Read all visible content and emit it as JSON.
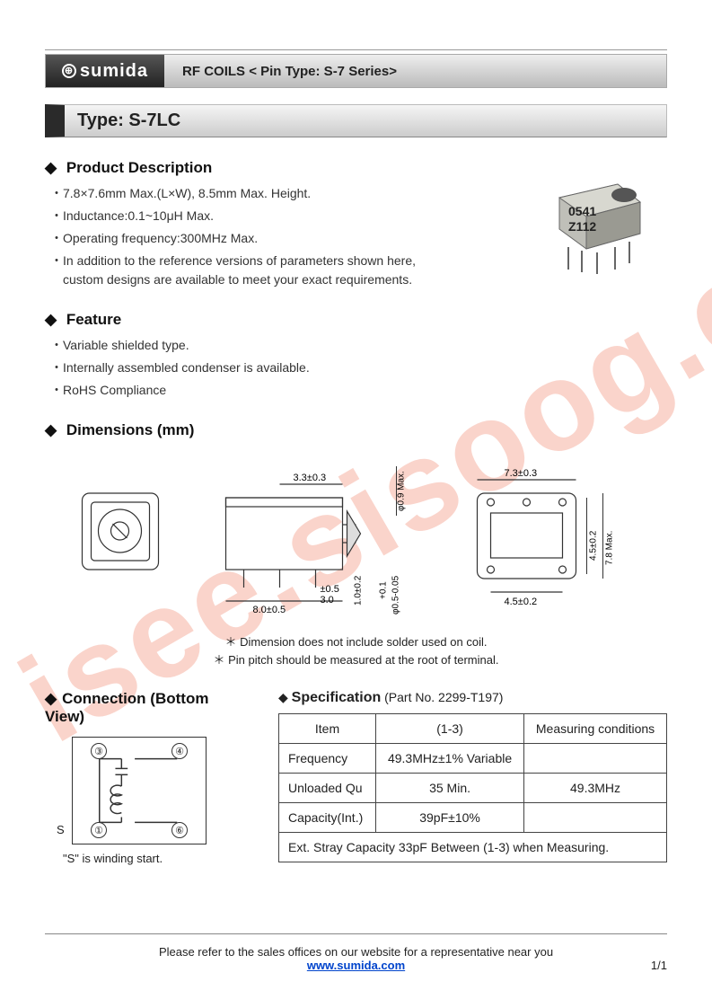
{
  "header": {
    "brand": "sumida",
    "title": "RF COILS < Pin Type: S-7 Series>"
  },
  "type_bar": "Type: S-7LC",
  "product_description": {
    "title": "Product Description",
    "items": [
      "7.8×7.6mm Max.(L×W), 8.5mm Max. Height.",
      "Inductance:0.1~10μH Max.",
      "Operating frequency:300MHz Max.",
      "In addition to the reference versions of parameters shown here, custom designs are available to meet your exact requirements."
    ]
  },
  "product_image": {
    "marking1": "0541",
    "marking2": "Z112"
  },
  "feature": {
    "title": "Feature",
    "items": [
      "Variable shielded type.",
      "Internally assembled condenser is available.",
      "RoHS Compliance"
    ]
  },
  "dimensions": {
    "title": "Dimensions (mm)",
    "labels": {
      "l1": "3.3±0.3",
      "l2": "8.0±0.5",
      "l3": "±0.5",
      "l4": "3.0",
      "l5": "1.0±0.2",
      "l6": "+0.1",
      "l7": "φ0.5-0.05",
      "l8": "φ0.9 Max.",
      "l9": "7.3±0.3",
      "l10": "4.5±0.2",
      "l11": "7.8 Max.",
      "l12": "4.5±0.2"
    },
    "notes": [
      "＊  Dimension does not include solder used on coil.",
      "＊  Pin pitch should be measured at the root of terminal."
    ]
  },
  "connection": {
    "title": "Connection (Bottom View)",
    "pins": {
      "p1": "①",
      "p3": "③",
      "p4": "④",
      "p6": "⑥"
    },
    "s": "S",
    "note": "\"S\"  is winding start."
  },
  "specification": {
    "title": "Specification",
    "part": "(Part No.  2299-T197)",
    "headers": {
      "item": "Item",
      "col1": "(1-3)",
      "cond": "Measuring conditions"
    },
    "rows": [
      {
        "item": "Frequency",
        "val": "49.3MHz±1% Variable",
        "cond": ""
      },
      {
        "item": "Unloaded Qu",
        "val": "35 Min.",
        "cond": "49.3MHz"
      },
      {
        "item": "Capacity(Int.)",
        "val": "39pF±10%",
        "cond": ""
      }
    ],
    "footnote": "Ext. Stray Capacity 33pF Between (1-3) when Measuring."
  },
  "footer": {
    "text": "Please refer to the sales offices on our website for a representative near you",
    "link": "www.sumida.com",
    "page": "1/1"
  },
  "watermark": "isee.sisoog.com",
  "colors": {
    "watermark": "rgba(230,60,20,0.22)",
    "border": "#444"
  }
}
